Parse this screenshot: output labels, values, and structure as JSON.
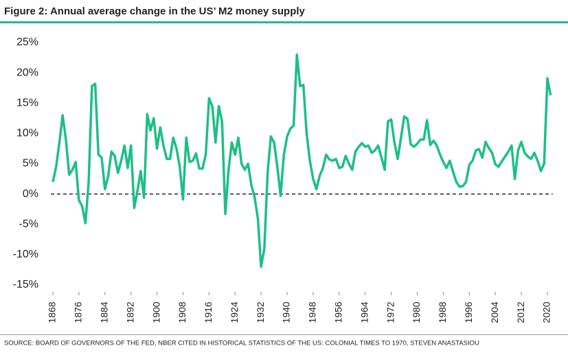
{
  "chart_data": {
    "type": "line",
    "title": "Figure 2: Annual average change in the US’ M2 money supply",
    "source": "SOURCE: BOARD OF GOVERNORS OF THE FED, NBER CITED IN HISTORICAL STATISTICS OF THE US: COLONIAL TIMES TO 1970, STEVEN ANASTASIOU",
    "color": "#1dbf85",
    "x": [
      1868,
      1869,
      1870,
      1871,
      1872,
      1873,
      1874,
      1875,
      1876,
      1877,
      1878,
      1879,
      1880,
      1881,
      1882,
      1883,
      1884,
      1885,
      1886,
      1887,
      1888,
      1889,
      1890,
      1891,
      1892,
      1893,
      1894,
      1895,
      1896,
      1897,
      1898,
      1899,
      1900,
      1901,
      1902,
      1903,
      1904,
      1905,
      1906,
      1907,
      1908,
      1909,
      1910,
      1911,
      1912,
      1913,
      1914,
      1915,
      1916,
      1917,
      1918,
      1919,
      1920,
      1921,
      1922,
      1923,
      1924,
      1925,
      1926,
      1927,
      1928,
      1929,
      1930,
      1931,
      1932,
      1933,
      1934,
      1935,
      1936,
      1937,
      1938,
      1939,
      1940,
      1941,
      1942,
      1943,
      1944,
      1945,
      1946,
      1947,
      1948,
      1949,
      1950,
      1951,
      1952,
      1953,
      1954,
      1955,
      1956,
      1957,
      1958,
      1959,
      1960,
      1961,
      1962,
      1963,
      1964,
      1965,
      1966,
      1967,
      1968,
      1969,
      1970,
      1971,
      1972,
      1973,
      1974,
      1975,
      1976,
      1977,
      1978,
      1979,
      1980,
      1981,
      1982,
      1983,
      1984,
      1985,
      1986,
      1987,
      1988,
      1989,
      1990,
      1991,
      1992,
      1993,
      1994,
      1995,
      1996,
      1997,
      1998,
      1999,
      2000,
      2001,
      2002,
      2003,
      2004,
      2005,
      2006,
      2007,
      2008,
      2009,
      2010,
      2011,
      2012,
      2013,
      2014,
      2015,
      2016,
      2017,
      2018,
      2019,
      2020,
      2021
    ],
    "values": [
      2,
      4.5,
      8.5,
      13,
      9,
      3.2,
      4,
      5.3,
      -1,
      -2,
      -4.8,
      2,
      17.8,
      18.2,
      6.5,
      6,
      0.8,
      3,
      7,
      6.3,
      3.5,
      5.5,
      8,
      4.3,
      8,
      -2.3,
      0.5,
      3.8,
      -0.6,
      13.2,
      10.5,
      12.5,
      7.5,
      11,
      8,
      5.8,
      5.8,
      9.3,
      7.5,
      4.5,
      -0.9,
      9.3,
      5.3,
      5.5,
      6.7,
      4.2,
      4.2,
      6.5,
      15.8,
      14.5,
      8.5,
      14.5,
      12,
      -3.3,
      4,
      8.5,
      6.5,
      9.3,
      5,
      4,
      5,
      1.5,
      -0.5,
      -4,
      -12,
      -9,
      3.5,
      9.5,
      8.5,
      4.5,
      -0.3,
      6.5,
      9.5,
      10.8,
      11.3,
      23,
      17.8,
      18,
      10,
      5.5,
      2.5,
      0.8,
      3,
      4.3,
      6.5,
      5.7,
      5.5,
      5.8,
      4.3,
      4.5,
      6.3,
      5,
      4,
      7,
      7.8,
      8.4,
      7.8,
      8,
      6.8,
      7.2,
      8,
      6,
      4,
      12,
      12.3,
      8.5,
      5.8,
      9.3,
      12.8,
      12.4,
      8.2,
      7.8,
      8.3,
      9,
      9,
      12.2,
      8.1,
      8.8,
      8,
      6.5,
      5.3,
      4.3,
      5.5,
      3.7,
      2,
      1.2,
      1.3,
      2,
      4.8,
      5.5,
      7.2,
      7.4,
      6,
      8.6,
      7.6,
      6.8,
      4.9,
      4.5,
      5.4,
      6.2,
      7,
      8,
      2.5,
      7.2,
      8.6,
      6.8,
      6.2,
      5.8,
      6.8,
      5.5,
      3.8,
      5,
      19.1,
      16.3
    ],
    "xlim": [
      1868,
      2021
    ],
    "xticks": [
      1868,
      1876,
      1884,
      1892,
      1900,
      1908,
      1916,
      1924,
      1932,
      1940,
      1948,
      1956,
      1964,
      1972,
      1980,
      1988,
      1996,
      2004,
      2012,
      2020
    ],
    "ylim": [
      -15,
      25
    ],
    "yticks": [
      {
        "value": -15,
        "label": "-15%"
      },
      {
        "value": -10,
        "label": "-10%"
      },
      {
        "value": -5,
        "label": "-5%"
      },
      {
        "value": 0,
        "label": "0%"
      },
      {
        "value": 5,
        "label": "5%"
      },
      {
        "value": 10,
        "label": "10%"
      },
      {
        "value": 15,
        "label": "15%"
      },
      {
        "value": 20,
        "label": "20%"
      },
      {
        "value": 25,
        "label": "25%"
      }
    ],
    "grid": false
  }
}
